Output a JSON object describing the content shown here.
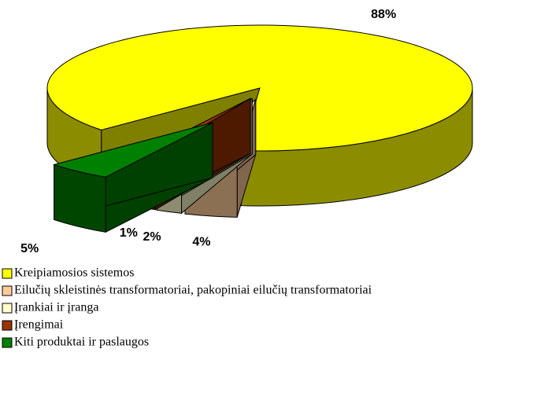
{
  "chart_data": {
    "type": "pie",
    "categories": [
      "Kreipiamosios sistemos",
      "Eilučių skleistinės transformatoriai, pakopiniai eilučių transformatoriai",
      "Įrankiai ir įranga",
      "Įrengimai",
      "Kiti produktai ir paslaugos"
    ],
    "values": [
      88,
      4,
      2,
      1,
      5
    ],
    "value_labels": [
      "88%",
      "4%",
      "2%",
      "1%",
      "5%"
    ],
    "colors": [
      "#ffff00",
      "#ffcc99",
      "#ffffcc",
      "#993300",
      "#008000"
    ],
    "legend": "bottom-left"
  }
}
